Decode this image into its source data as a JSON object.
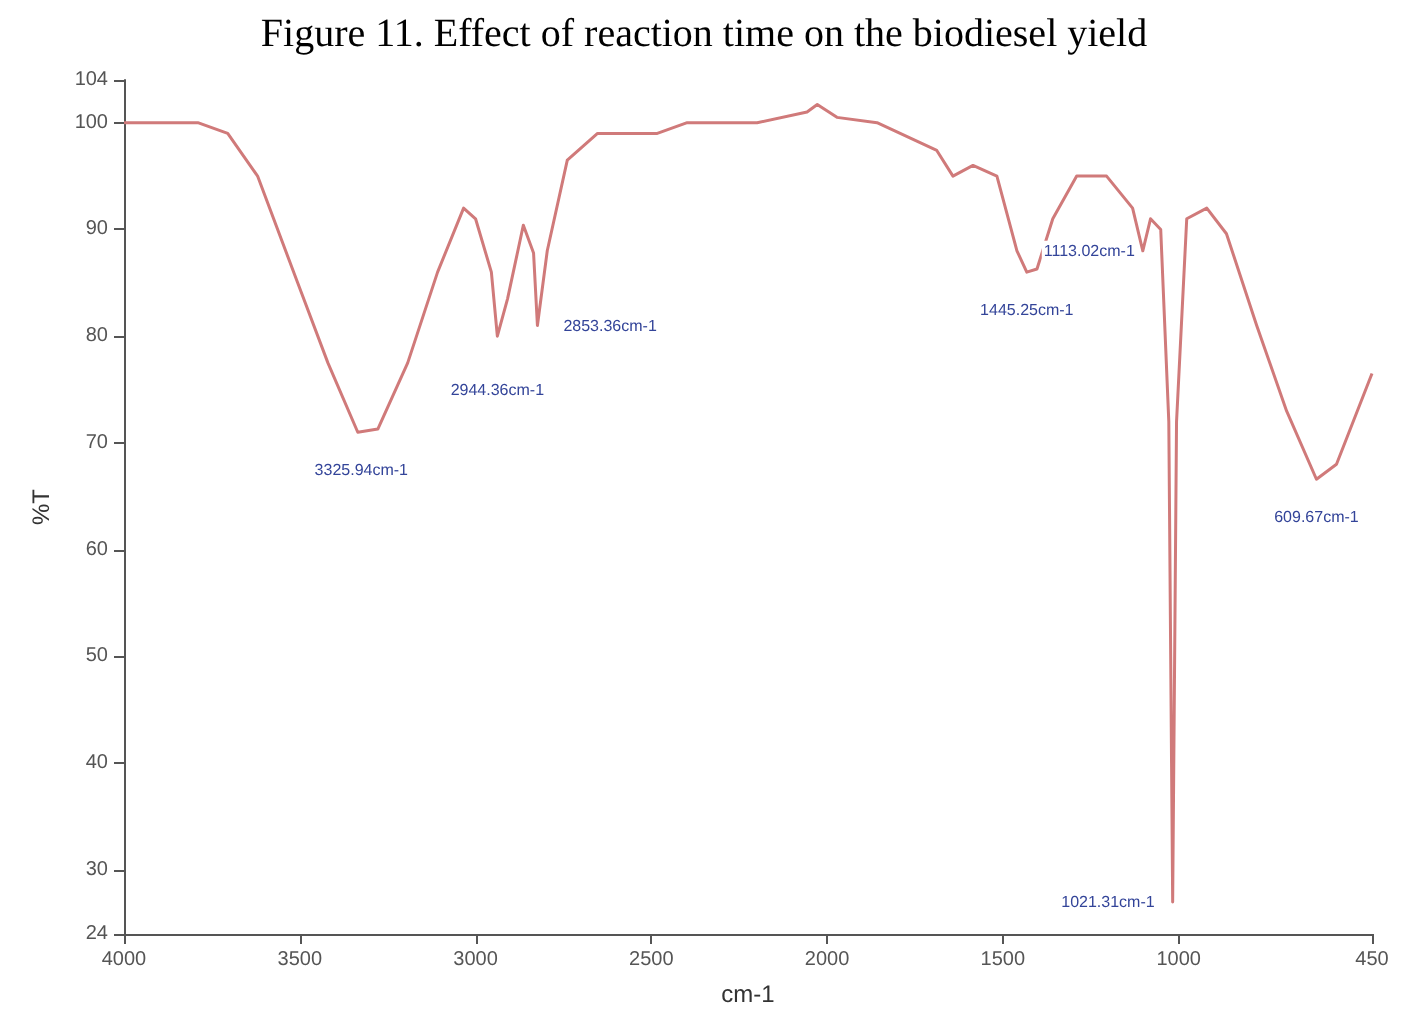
{
  "chart_data": {
    "type": "line",
    "title": "Figure 11. Effect of reaction time on the biodiesel yield",
    "xlabel": "cm-1",
    "ylabel": "%T",
    "xlim": [
      4000,
      450
    ],
    "xticks": [
      4000,
      3500,
      3000,
      2500,
      2000,
      1500,
      1000,
      450
    ],
    "ylim": [
      24,
      104
    ],
    "yticks": [
      24,
      30,
      40,
      50,
      60,
      70,
      80,
      90,
      100,
      104
    ],
    "grid": false,
    "marker": "none",
    "line_style": "solid",
    "series": [
      {
        "color": "#d07a7a",
        "x": [
          4000,
          3790,
          3705,
          3620,
          3506,
          3420,
          3335,
          3278,
          3193,
          3108,
          3034,
          3000,
          2955,
          2938,
          2909,
          2864,
          2835,
          2824,
          2796,
          2739,
          2653,
          2483,
          2398,
          2199,
          2057,
          2028,
          1972,
          1858,
          1688,
          1642,
          1585,
          1517,
          1460,
          1432,
          1403,
          1358,
          1290,
          1205,
          1131,
          1102,
          1080,
          1051,
          1028,
          1017,
          1006,
          977,
          920,
          864,
          778,
          693,
          608,
          551,
          450
        ],
        "values": [
          100,
          100,
          99,
          95,
          85,
          77.5,
          71,
          71.3,
          77.5,
          86,
          92,
          91,
          86,
          80,
          83.5,
          90.4,
          87.8,
          81,
          88,
          96.5,
          99,
          99,
          100,
          100,
          101,
          101.7,
          100.5,
          100,
          97.4,
          95,
          96,
          95,
          88,
          86,
          86.3,
          91,
          95,
          95,
          92,
          88,
          91,
          90,
          72,
          27,
          72,
          91,
          92,
          89.6,
          81,
          73,
          66.6,
          68,
          76.5
        ]
      }
    ],
    "annotations": [
      {
        "text": "3325.94cm-1",
        "x": 3325,
        "y": 71
      },
      {
        "text": "2944.36cm-1",
        "x": 2938,
        "y": 80
      },
      {
        "text": "2853.36cm-1",
        "x": 2824,
        "y": 81
      },
      {
        "text": "1445.25cm-1",
        "x": 1432,
        "y": 86
      },
      {
        "text": "1113.02cm-1",
        "x": 1102,
        "y": 88
      },
      {
        "text": "1021.31cm-1",
        "x": 1017,
        "y": 27
      },
      {
        "text": "609.67cm-1",
        "x": 608,
        "y": 66.6
      }
    ]
  }
}
